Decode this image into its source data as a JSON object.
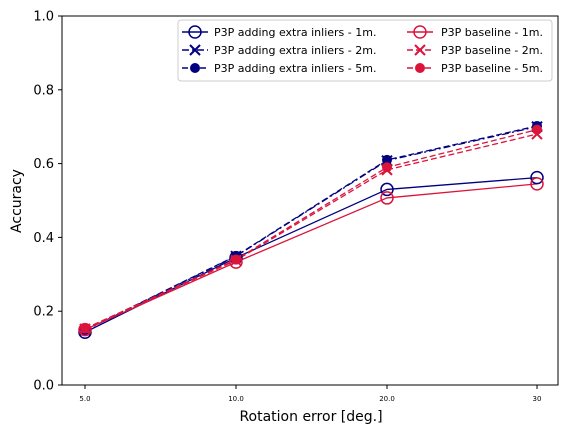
{
  "chart_data": {
    "type": "line",
    "title": "",
    "xlabel": "Rotation error [deg.]",
    "ylabel": "Accuracy",
    "categories": [
      "5.0",
      "10.0",
      "20.0",
      "30"
    ],
    "ylim": [
      0,
      1
    ],
    "yticks": [
      "0.0",
      "0.2",
      "0.4",
      "0.6",
      "0.8",
      "1.0"
    ],
    "grid": false,
    "legend_position": "top-right",
    "legend_columns": 2,
    "series": [
      {
        "name": "P3P adding extra inliers - 1m.",
        "values": [
          0.143,
          0.345,
          0.53,
          0.562
        ],
        "color": "#000080",
        "dash": "solid",
        "marker": "open-circle"
      },
      {
        "name": "P3P adding extra inliers - 2m.",
        "values": [
          0.148,
          0.349,
          0.608,
          0.7
        ],
        "color": "#000080",
        "dash": "dashdot",
        "marker": "x"
      },
      {
        "name": "P3P adding extra inliers - 5m.",
        "values": [
          0.149,
          0.35,
          0.61,
          0.702
        ],
        "color": "#000080",
        "dash": "dashed",
        "marker": "filled-circle"
      },
      {
        "name": "P3P baseline - 1m.",
        "values": [
          0.15,
          0.333,
          0.507,
          0.545
        ],
        "color": "#dc143c",
        "dash": "solid",
        "marker": "open-circle"
      },
      {
        "name": "P3P baseline - 2m.",
        "values": [
          0.152,
          0.338,
          0.583,
          0.68
        ],
        "color": "#dc143c",
        "dash": "dashed",
        "marker": "x"
      },
      {
        "name": "P3P baseline - 5m.",
        "values": [
          0.153,
          0.34,
          0.59,
          0.692
        ],
        "color": "#dc143c",
        "dash": "dashed",
        "marker": "filled-circle"
      }
    ]
  }
}
